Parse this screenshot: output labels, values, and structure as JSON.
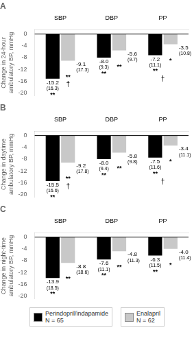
{
  "chart_data": [
    {
      "type": "bar",
      "title": "A",
      "ylabel": "Change in 24-hour\nambulatory BP, mmHg",
      "categories": [
        "SBP",
        "DBP",
        "PP"
      ],
      "series": [
        {
          "name": "Perindopril/indapamide\nN = 65",
          "color": "#000000",
          "values": [
            -15.2,
            -8.0,
            -7.2
          ],
          "value_labels": [
            "-15.2",
            "-8.0",
            "-7.2"
          ],
          "sd": [
            "(16.3)",
            "(9.3)",
            "(11.1)"
          ],
          "sig": [
            "**",
            "**",
            "**"
          ]
        },
        {
          "name": "Enalapril\nN = 62",
          "color": "#c8c8c8",
          "values": [
            -9.1,
            -5.6,
            -3.5
          ],
          "value_labels": [
            "-9.1",
            "-5.6",
            "-3.5"
          ],
          "sd": [
            "(17.3)",
            "(9.7)",
            "(10.8)"
          ],
          "sig": [
            "**",
            "**",
            "*"
          ]
        }
      ],
      "annotations": [
        {
          "text": "†",
          "category": "SBP",
          "series": "Enalapril\nN = 62"
        },
        {
          "text": "†",
          "category": "PP"
        }
      ],
      "ylim": [
        -21,
        1.5
      ],
      "yticks": [
        0,
        -4,
        -8,
        -12,
        -16,
        -20
      ],
      "grid": false,
      "data_labels": true
    },
    {
      "type": "bar",
      "title": "B",
      "ylabel": "Change in daytime\nambulatory BP, mmHg",
      "categories": [
        "SBP",
        "DBP",
        "PP"
      ],
      "series": [
        {
          "name": "Perindopril/indapamide\nN = 65",
          "color": "#000000",
          "values": [
            -15.5,
            -8.0,
            -7.5
          ],
          "value_labels": [
            "-15.5",
            "-8.0",
            "-7.5"
          ],
          "sd": [
            "(16.6)",
            "(9.4)",
            "(11.6)"
          ],
          "sig": [
            "**",
            "**",
            "**"
          ]
        },
        {
          "name": "Enalapril\nN = 62",
          "color": "#c8c8c8",
          "values": [
            -9.2,
            -5.8,
            -3.4
          ],
          "value_labels": [
            "-9.2",
            "-5.8",
            "-3.4"
          ],
          "sd": [
            "(17.8)",
            "(9.8)",
            "(11.1)"
          ],
          "sig": [
            "**",
            "**",
            "*"
          ]
        }
      ],
      "annotations": [
        {
          "text": "†",
          "category": "SBP",
          "series": "Enalapril\nN = 62"
        },
        {
          "text": "†",
          "category": "PP"
        }
      ],
      "ylim": [
        -21,
        1.5
      ],
      "yticks": [
        0,
        -4,
        -8,
        -12,
        -16,
        -20
      ],
      "grid": false,
      "data_labels": true
    },
    {
      "type": "bar",
      "title": "C",
      "ylabel": "Change in night-time\nambulatory BP, mmHg",
      "categories": [
        "SBP",
        "DBP",
        "PP"
      ],
      "series": [
        {
          "name": "Perindopril/indapamide\nN = 65",
          "color": "#000000",
          "values": [
            -13.9,
            -7.6,
            -6.3
          ],
          "value_labels": [
            "-13.9",
            "-7.6",
            "-6.3"
          ],
          "sd": [
            "(18.5)",
            "(11.1)",
            "(11.5)"
          ],
          "sig": [
            "**",
            "**",
            "**"
          ]
        },
        {
          "name": "Enalapril\nN = 62",
          "color": "#c8c8c8",
          "values": [
            -8.8,
            -4.8,
            -4.0
          ],
          "value_labels": [
            "-8.8",
            "-4.8",
            "-4.0"
          ],
          "sd": [
            "(18.6)",
            "(11.3)",
            "(11.4)"
          ],
          "sig": [
            "**",
            "**",
            "*"
          ]
        }
      ],
      "ylim": [
        -21,
        1.5
      ],
      "yticks": [
        0,
        -4,
        -8,
        -12,
        -16,
        -20
      ],
      "grid": false,
      "data_labels": true,
      "legend": "bottom"
    }
  ]
}
